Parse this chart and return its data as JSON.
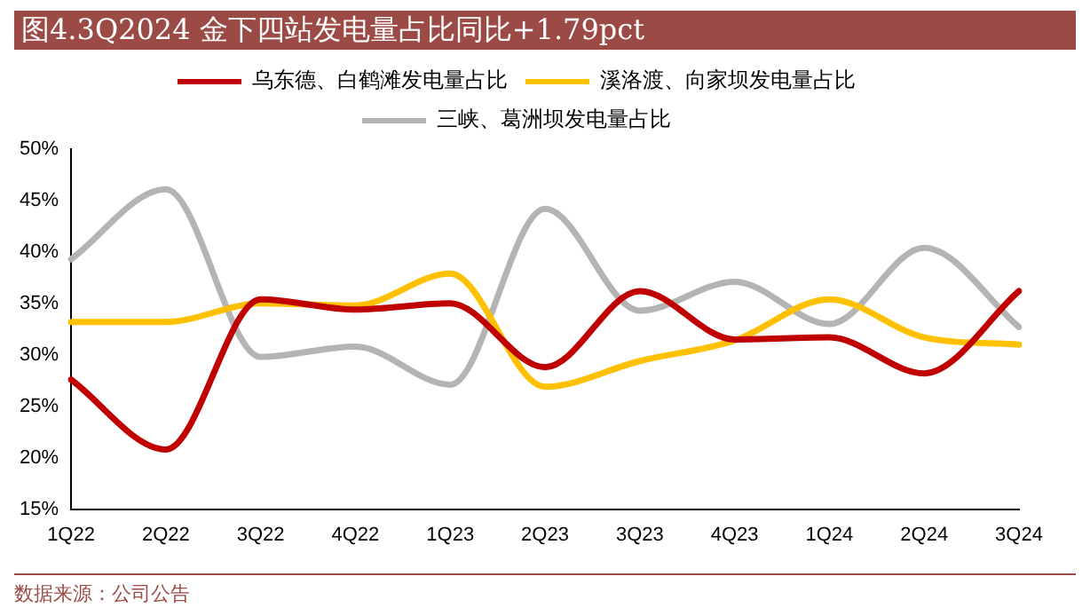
{
  "chart_data": {
    "type": "line",
    "title": "图4.3Q2024 金下四站发电量占比同比+1.79pct",
    "categories": [
      "1Q22",
      "2Q22",
      "3Q22",
      "4Q22",
      "1Q23",
      "2Q23",
      "3Q23",
      "4Q23",
      "1Q24",
      "2Q24",
      "3Q24"
    ],
    "series": [
      {
        "name": "乌东德、白鹤滩发电量占比",
        "color": "#c00000",
        "values": [
          27.6,
          20.8,
          35.4,
          34.4,
          35.0,
          28.8,
          36.2,
          31.5,
          31.7,
          28.2,
          36.2
        ]
      },
      {
        "name": "溪洛渡、向家坝发电量占比",
        "color": "#ffc000",
        "values": [
          33.2,
          33.2,
          35.0,
          34.8,
          37.9,
          26.9,
          29.4,
          31.4,
          35.4,
          31.7,
          31.0
        ]
      },
      {
        "name": "三峡、葛洲坝发电量占比",
        "color": "#b4b4b4",
        "values": [
          39.3,
          46.1,
          29.8,
          30.8,
          27.1,
          44.2,
          34.3,
          37.1,
          33.0,
          40.4,
          32.7
        ]
      }
    ],
    "ylim": [
      15,
      50
    ],
    "yticks": [
      {
        "value": 15,
        "label": "15%"
      },
      {
        "value": 20,
        "label": "20%"
      },
      {
        "value": 25,
        "label": "25%"
      },
      {
        "value": 30,
        "label": "30%"
      },
      {
        "value": 35,
        "label": "35%"
      },
      {
        "value": 40,
        "label": "40%"
      },
      {
        "value": 45,
        "label": "45%"
      },
      {
        "value": 50,
        "label": "50%"
      }
    ],
    "grid": false,
    "legend": "top",
    "marker": "none",
    "line_style": "solid",
    "annotations": [
      "数据来源：公司公告"
    ]
  }
}
